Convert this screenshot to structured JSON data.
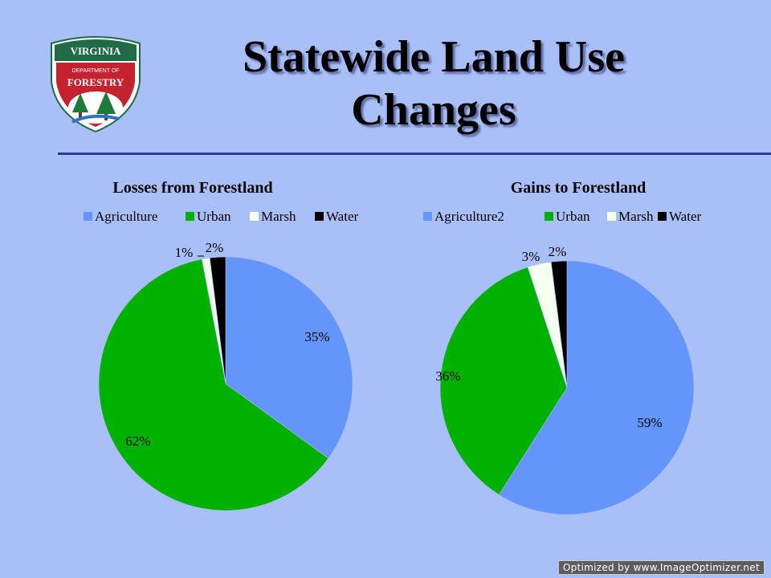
{
  "slide": {
    "title_line1": "Statewide Land Use",
    "title_line2": "Changes",
    "logo": {
      "top_text": "VIRGINIA",
      "middle_text": "DEPARTMENT OF",
      "bottom_text": "FORESTRY"
    },
    "watermark": "Optimized by www.ImageOptimizer.net"
  },
  "colors": {
    "agriculture": "#6495fb",
    "urban": "#00b100",
    "marsh": "#f4fff0",
    "water": "#000000",
    "background": "#a8bff8",
    "rule": "#2e3a92"
  },
  "chart_data": [
    {
      "type": "pie",
      "title": "Losses from Forestland",
      "legend_position": "top",
      "start_angle_deg": 0,
      "direction": "clockwise",
      "slices": [
        {
          "label": "Agriculture",
          "value": 35,
          "display": "35%"
        },
        {
          "label": "Urban",
          "value": 62,
          "display": "62%"
        },
        {
          "label": "Marsh",
          "value": 1,
          "display": "1%"
        },
        {
          "label": "Water",
          "value": 2,
          "display": "2%"
        }
      ]
    },
    {
      "type": "pie",
      "title": "Gains to Forestland",
      "legend_position": "top",
      "start_angle_deg": 0,
      "direction": "clockwise",
      "slices": [
        {
          "label": "Agriculture2",
          "value": 59,
          "display": "59%"
        },
        {
          "label": "Urban",
          "value": 36,
          "display": "36%"
        },
        {
          "label": "Marsh",
          "value": 3,
          "display": "3%"
        },
        {
          "label": "Water",
          "value": 2,
          "display": "2%"
        }
      ]
    }
  ]
}
